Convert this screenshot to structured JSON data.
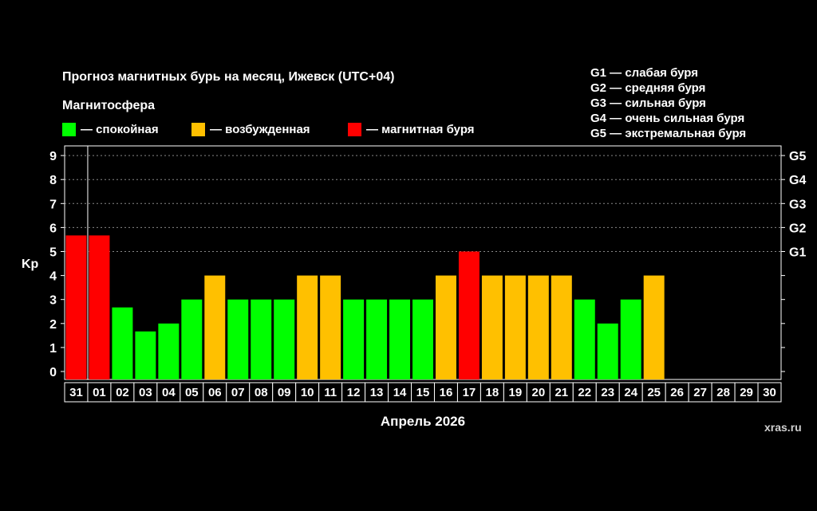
{
  "header": {
    "title": "Прогноз магнитных бурь на месяц, Ижевск (UTC+04)",
    "magnetosphere_label": "Магнитосфера"
  },
  "legend": [
    {
      "label": "— спокойная",
      "color": "#00ff00"
    },
    {
      "label": "— возбужденная",
      "color": "#ffc000"
    },
    {
      "label": "— магнитная буря",
      "color": "#ff0000"
    }
  ],
  "g_key": [
    "G1 — слабая буря",
    "G2 — средняя буря",
    "G3 — сильная буря",
    "G4 — очень сильная буря",
    "G5 — экстремальная буря"
  ],
  "watermark": "xras.ru",
  "chart_data": {
    "type": "bar",
    "xlabel": "Апрель 2026",
    "ylabel": "Kp",
    "ylim": [
      0,
      9
    ],
    "yticks": [
      "0",
      "1",
      "2",
      "3",
      "4",
      "5",
      "6",
      "7",
      "8",
      "9"
    ],
    "right_ticks": [
      {
        "y": 5,
        "label": "G1"
      },
      {
        "y": 6,
        "label": "G2"
      },
      {
        "y": 7,
        "label": "G3"
      },
      {
        "y": 8,
        "label": "G4"
      },
      {
        "y": 9,
        "label": "G5"
      }
    ],
    "categories": [
      "31",
      "01",
      "02",
      "03",
      "04",
      "05",
      "06",
      "07",
      "08",
      "09",
      "10",
      "11",
      "12",
      "13",
      "14",
      "15",
      "16",
      "17",
      "18",
      "19",
      "20",
      "21",
      "22",
      "23",
      "24",
      "25",
      "26",
      "27",
      "28",
      "29",
      "30"
    ],
    "values": [
      5.67,
      5.67,
      2.67,
      1.67,
      2.0,
      3.0,
      4.0,
      3.0,
      3.0,
      3.0,
      4.0,
      4.0,
      3.0,
      3.0,
      3.0,
      3.0,
      4.0,
      5.0,
      4.0,
      4.0,
      4.0,
      4.0,
      3.0,
      2.0,
      3.0,
      4.0,
      null,
      null,
      null,
      null,
      null
    ],
    "levels": [
      "storm",
      "storm",
      "quiet",
      "quiet",
      "quiet",
      "quiet",
      "active",
      "quiet",
      "quiet",
      "quiet",
      "active",
      "active",
      "quiet",
      "quiet",
      "quiet",
      "quiet",
      "active",
      "storm",
      "active",
      "active",
      "active",
      "active",
      "quiet",
      "quiet",
      "quiet",
      "active",
      "",
      "",
      "",
      "",
      ""
    ],
    "level_colors": {
      "quiet": "#00ff00",
      "active": "#ffc000",
      "storm": "#ff0000"
    },
    "grid_dashed_from": 5
  }
}
